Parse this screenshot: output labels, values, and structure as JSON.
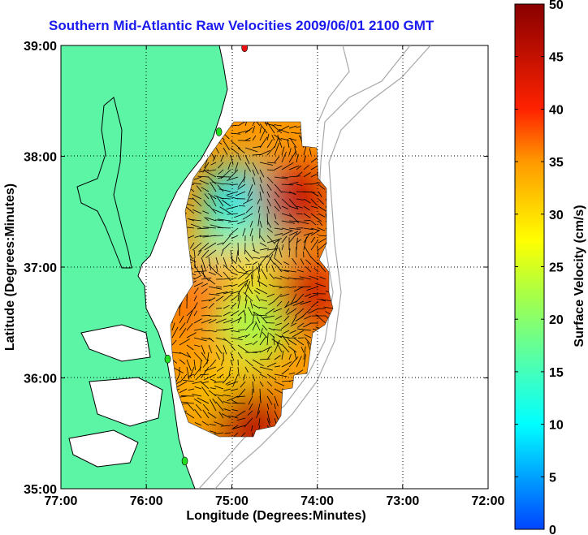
{
  "chart_data": {
    "type": "heatmap",
    "title": "Southern Mid-Atlantic Raw Velocities 2009/06/01 2100 GMT",
    "xlabel": "Longitude (Degrees:Minutes)",
    "ylabel": "Latitude (Degrees:Minutes)",
    "x_ticks": [
      "77:00",
      "76:00",
      "75:00",
      "74:00",
      "73:00",
      "72:00"
    ],
    "y_ticks": [
      "39:00",
      "38:00",
      "37:00",
      "36:00",
      "35:00"
    ],
    "xlim": [
      -77,
      -72
    ],
    "ylim": [
      35,
      39
    ],
    "grid": true,
    "colorbar": {
      "label": "Surface Velocity (cm/s)",
      "range": [
        0,
        50
      ],
      "ticks": [
        "0",
        "5",
        "10",
        "15",
        "20",
        "25",
        "30",
        "35",
        "40",
        "45",
        "50"
      ]
    },
    "colors": {
      "land": "#5cf5a6",
      "water": "#ffffff",
      "coast": "#000000",
      "bathymetry": "#a0a0a0",
      "vectors": "#000000",
      "station_green": "#22dd22",
      "station_red": "#ee1111"
    },
    "velocity_regions": [
      {
        "lon": -74.9,
        "lat": 37.6,
        "speed_cms": 8
      },
      {
        "lon": -74.6,
        "lat": 37.5,
        "speed_cms": 12
      },
      {
        "lon": -74.3,
        "lat": 37.6,
        "speed_cms": 45
      },
      {
        "lon": -75.0,
        "lat": 37.15,
        "speed_cms": 14
      },
      {
        "lon": -74.9,
        "lat": 36.9,
        "speed_cms": 32
      },
      {
        "lon": -74.5,
        "lat": 36.75,
        "speed_cms": 28
      },
      {
        "lon": -74.15,
        "lat": 36.75,
        "speed_cms": 44
      },
      {
        "lon": -75.2,
        "lat": 36.6,
        "speed_cms": 38
      },
      {
        "lon": -74.8,
        "lat": 36.45,
        "speed_cms": 22
      },
      {
        "lon": -75.3,
        "lat": 36.1,
        "speed_cms": 35
      },
      {
        "lon": -75.0,
        "lat": 35.8,
        "speed_cms": 30
      },
      {
        "lon": -74.8,
        "lat": 35.6,
        "speed_cms": 46
      }
    ],
    "stations": [
      {
        "lon": -74.85,
        "lat": 38.98,
        "color": "red"
      },
      {
        "lon": -75.15,
        "lat": 38.22,
        "color": "green"
      },
      {
        "lon": -75.75,
        "lat": 36.17,
        "color": "green"
      },
      {
        "lon": -75.55,
        "lat": 35.25,
        "color": "green"
      }
    ]
  }
}
